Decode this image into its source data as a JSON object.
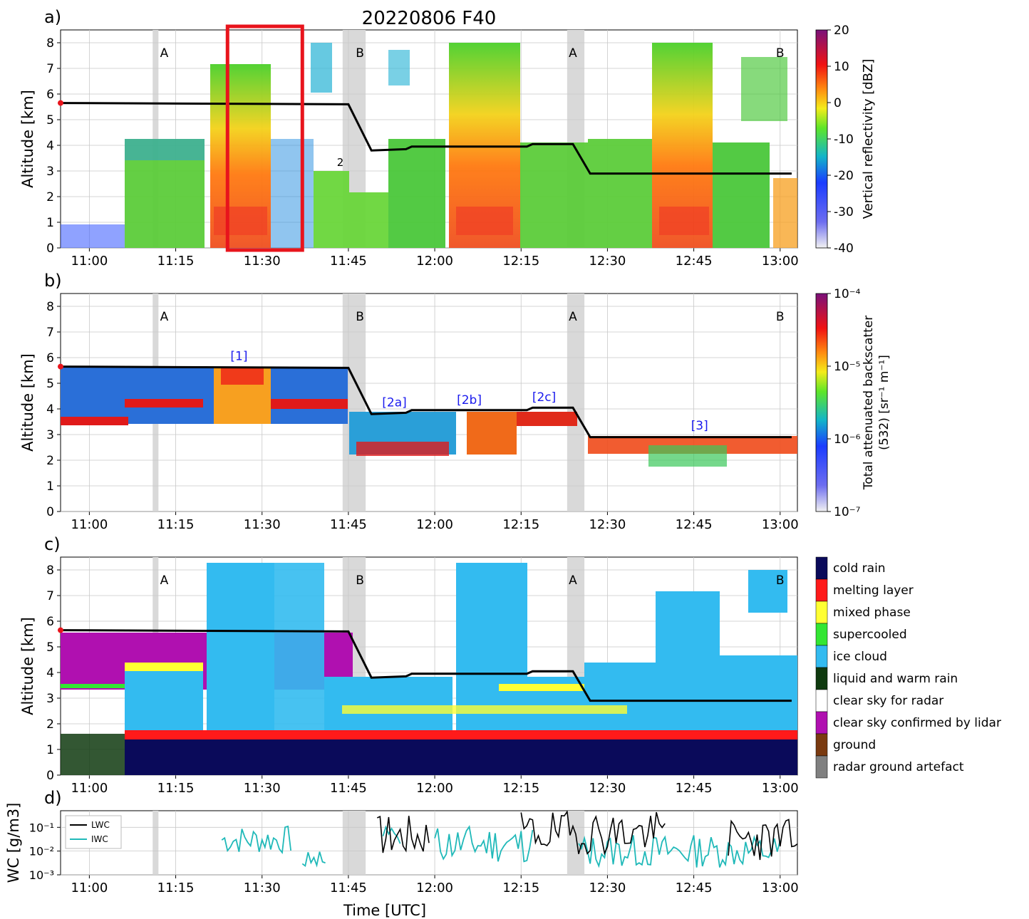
{
  "figure": {
    "title": "20220806 F40",
    "panel_letters": [
      "a)",
      "b)",
      "c)",
      "d)"
    ],
    "xlabel": "Time [UTC]",
    "x_ticks": [
      "11:00",
      "11:15",
      "11:30",
      "11:45",
      "12:00",
      "12:15",
      "12:30",
      "12:45",
      "13:00"
    ],
    "colors": {
      "flight_track": "#000000",
      "highlight_box": "#e8141c",
      "leg_shading": "#d9d9d9",
      "lwc": "#000000",
      "iwc": "#20b9b9"
    }
  },
  "chart_data": [
    {
      "panel": "a)",
      "type": "heatmap",
      "ylabel": "Altitude [km]",
      "ylim": [
        0,
        8.5
      ],
      "y_ticks": [
        "0",
        "1",
        "2",
        "3",
        "4",
        "5",
        "6",
        "7",
        "8"
      ],
      "colorbar": {
        "label": "Vertical reflectivity [dBZ]",
        "ticks": [
          "20",
          "10",
          "0",
          "-10",
          "-20",
          "-30",
          "-40"
        ],
        "range": [
          -40,
          20
        ]
      },
      "leg_markers": [
        "A",
        "B",
        "A",
        "B"
      ],
      "annotations": [
        "2"
      ],
      "highlight_box_time": [
        "11:24",
        "11:37"
      ],
      "flight_altitude_km": [
        {
          "t": "10:55",
          "alt": 5.65
        },
        {
          "t": "11:45",
          "alt": 5.6
        },
        {
          "t": "11:49",
          "alt": 3.8
        },
        {
          "t": "11:55",
          "alt": 3.85
        },
        {
          "t": "11:56",
          "alt": 3.95
        },
        {
          "t": "12:16",
          "alt": 3.95
        },
        {
          "t": "12:17",
          "alt": 4.05
        },
        {
          "t": "12:24",
          "alt": 4.05
        },
        {
          "t": "12:27",
          "alt": 2.9
        },
        {
          "t": "13:02",
          "alt": 2.9
        }
      ]
    },
    {
      "panel": "b)",
      "type": "heatmap",
      "ylabel": "Altitude [km]",
      "ylim": [
        0,
        8.5
      ],
      "y_ticks": [
        "0",
        "1",
        "2",
        "3",
        "4",
        "5",
        "6",
        "7",
        "8"
      ],
      "colorbar": {
        "label_line1": "Total attenuated backscatter",
        "label_line2": "(532) [sr⁻¹ m⁻¹]",
        "ticks": [
          "10⁻⁴",
          "10⁻⁵",
          "10⁻⁶",
          "10⁻⁷"
        ],
        "scale": "log"
      },
      "leg_markers": [
        "A",
        "B",
        "A",
        "B"
      ],
      "case_labels": [
        "[1]",
        "[2a]",
        "[2b]",
        "[2c]",
        "[3]"
      ]
    },
    {
      "panel": "c)",
      "type": "heatmap",
      "ylabel": "Altitude [km]",
      "ylim": [
        0,
        8.5
      ],
      "y_ticks": [
        "0",
        "1",
        "2",
        "3",
        "4",
        "5",
        "6",
        "7",
        "8"
      ],
      "leg_markers": [
        "A",
        "B",
        "A",
        "B"
      ],
      "classes": [
        {
          "label": "cold rain",
          "color": "#0a0a5a"
        },
        {
          "label": "melting layer",
          "color": "#ff1a1a"
        },
        {
          "label": "mixed phase",
          "color": "#ffff33"
        },
        {
          "label": "supercooled",
          "color": "#33e633"
        },
        {
          "label": "ice cloud",
          "color": "#33bbf0"
        },
        {
          "label": "liquid and warm rain",
          "color": "#0f3a0f"
        },
        {
          "label": "clear sky for radar",
          "color": "#ffffff"
        },
        {
          "label": "clear sky confirmed by lidar",
          "color": "#b010b0"
        },
        {
          "label": "ground",
          "color": "#7a3a10"
        },
        {
          "label": "radar ground artefact",
          "color": "#808080"
        }
      ]
    },
    {
      "panel": "d)",
      "type": "line",
      "ylabel": "WC [g/m3]",
      "yscale": "log",
      "ylim": [
        0.001,
        0.5
      ],
      "y_ticks": [
        "10⁻¹",
        "10⁻²",
        "10⁻³"
      ],
      "series": [
        {
          "name": "LWC",
          "color": "#000000"
        },
        {
          "name": "IWC",
          "color": "#20b9b9"
        }
      ]
    }
  ]
}
